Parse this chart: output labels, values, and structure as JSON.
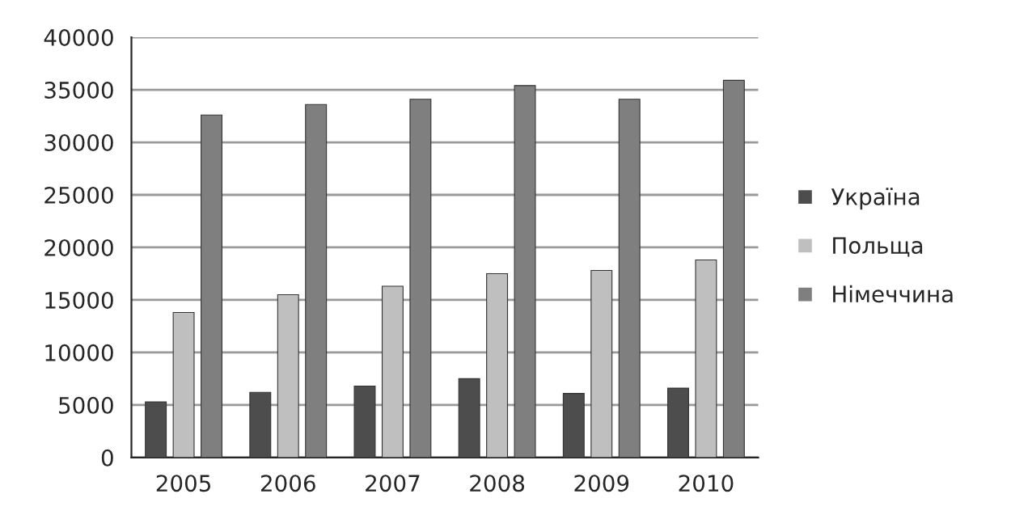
{
  "chart_data": {
    "type": "bar",
    "categories": [
      "2005",
      "2006",
      "2007",
      "2008",
      "2009",
      "2010"
    ],
    "series": [
      {
        "name": "Україна",
        "color": "#4d4d4d",
        "values": [
          5300,
          6200,
          6800,
          7500,
          6100,
          6600
        ]
      },
      {
        "name": "Польща",
        "color": "#bfbfbf",
        "values": [
          13800,
          15500,
          16300,
          17500,
          17800,
          18800
        ]
      },
      {
        "name": "Німеччина",
        "color": "#7f7f7f",
        "values": [
          32600,
          33600,
          34100,
          35400,
          34100,
          35900
        ]
      }
    ],
    "ylim": [
      0,
      40000
    ],
    "yticks": [
      0,
      5000,
      10000,
      15000,
      20000,
      25000,
      30000,
      35000,
      40000
    ],
    "grid": "y",
    "legend": "right"
  }
}
